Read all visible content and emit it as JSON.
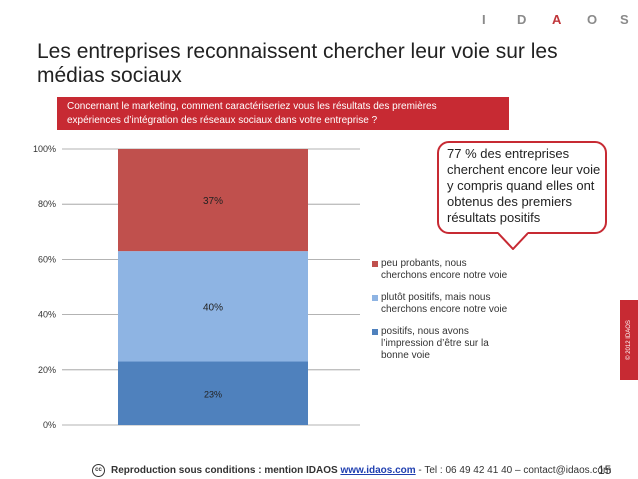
{
  "logo": {
    "letters": [
      "I",
      "D",
      "A",
      "O",
      "S"
    ]
  },
  "title": {
    "line1": "Les entreprises reconnaissent chercher leur voie sur les",
    "line2": "médias sociaux"
  },
  "question": {
    "line1": "Concernant le marketing, comment caractériseriez vous les résultats des premières",
    "line2": "expériences d’intégration des réseaux sociaux dans votre entreprise ?"
  },
  "callout": {
    "lines": [
      "77 % des entreprises",
      "cherchent encore leur voie",
      "y compris quand elles ont",
      "obtenus des premiers",
      "résultats positifs"
    ]
  },
  "chart_data": {
    "type": "bar",
    "stacked": true,
    "categories": [
      ""
    ],
    "ylim": [
      0,
      100
    ],
    "yticks": [
      "0%",
      "20%",
      "40%",
      "60%",
      "80%",
      "100%"
    ],
    "grid": true,
    "legend_position": "right",
    "series": [
      {
        "name": "positifs, nous avons l’impression d’être sur la bonne voie",
        "values": [
          23
        ],
        "label": "23%",
        "color": "#4f81bd",
        "legend_lines": [
          "positifs, nous avons",
          "l’impression d’être sur la",
          "bonne voie"
        ]
      },
      {
        "name": "plutôt positifs, mais nous cherchons encore notre voie",
        "values": [
          40
        ],
        "label": "40%",
        "color": "#8eb4e3",
        "legend_lines": [
          "plutôt positifs, mais nous",
          "cherchons encore notre voie"
        ]
      },
      {
        "name": "peu probants, nous cherchons encore notre voie",
        "values": [
          37
        ],
        "label": "37%",
        "color": "#c0504d",
        "legend_lines": [
          "peu probants,  nous",
          "cherchons encore notre voie"
        ]
      }
    ]
  },
  "copyright": "© 2012 IDAOS",
  "footer": {
    "cc": "cc",
    "text": "Reproduction sous conditions : mention IDAOS",
    "link": "www.idaos.com",
    "contact": " - Tel : 06 49 42 41 40 – contact@idaos.com"
  },
  "page_number": "15"
}
